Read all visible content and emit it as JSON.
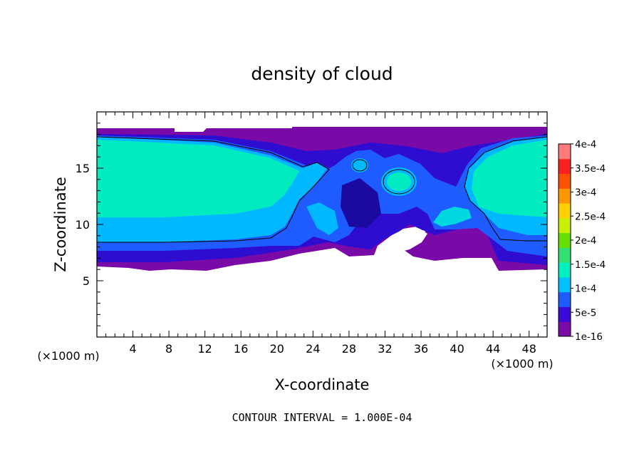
{
  "chart_data": {
    "type": "heatmap",
    "title": "density of cloud",
    "xlabel": "X-coordinate",
    "ylabel": "Z-coordinate",
    "x_unit_label": "(×1000 m)",
    "y_unit_label": "(×1000 m)",
    "xlim": [
      0,
      50
    ],
    "ylim": [
      0,
      20
    ],
    "x_ticks": [
      4,
      8,
      12,
      16,
      20,
      24,
      28,
      32,
      36,
      40,
      44,
      48
    ],
    "y_ticks": [
      5,
      10,
      15
    ],
    "footer": "CONTOUR INTERVAL = 1.000E-04",
    "colorbar": {
      "labels": [
        "1e-16",
        "5e-5",
        "1e-4",
        "1.5e-4",
        "2e-4",
        "2.5e-4",
        "3e-4",
        "3.5e-4",
        "4e-4"
      ],
      "levels": [
        1e-16,
        5e-05,
        0.0001,
        0.00015,
        0.0002,
        0.00025,
        0.0003,
        0.00035,
        0.0004
      ],
      "colors": [
        "#7b0aa8",
        "#3a0ad8",
        "#1e5cff",
        "#00c0ff",
        "#00f0c0",
        "#30e070",
        "#66e000",
        "#c8f000",
        "#ffd000",
        "#ff9800",
        "#ff5000",
        "#ff2020",
        "#ff7a7a"
      ]
    },
    "regions": {
      "left_core": "1.5e-4",
      "right_core": "1.5e-4",
      "central_turbulent": "5e-5",
      "upper_edge": "1e-16",
      "cloud_base_km": 6.5,
      "cloud_top_km": 18.5
    }
  }
}
